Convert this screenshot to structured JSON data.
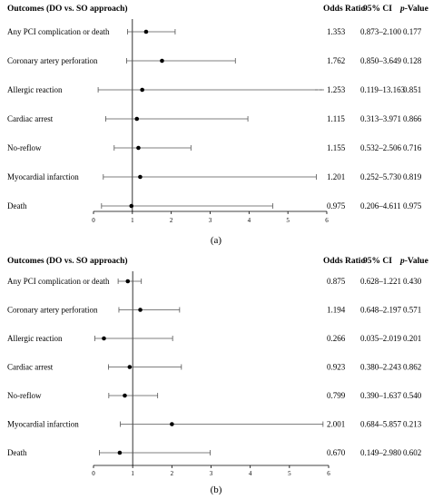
{
  "chart_data": [
    {
      "type": "forest",
      "panel_label": "(a)",
      "header": {
        "outcomes": "Outcomes (DO vs. SO approach)",
        "or": "Odds Ratio",
        "ci": "95% CI",
        "p_italic": "p",
        "p_rest": "-Value"
      },
      "xlim": [
        0,
        6
      ],
      "x_ticks": [
        "0",
        "1",
        "2",
        "3",
        "4",
        "5",
        "6"
      ],
      "rows": [
        {
          "label": "Any PCI complication or death",
          "or": 1.353,
          "lo": 0.873,
          "hi": 2.1,
          "or_text": "1.353",
          "ci_text": "0.873–2.100",
          "p_text": "0.177"
        },
        {
          "label": "Coronary artery perforation",
          "or": 1.762,
          "lo": 0.85,
          "hi": 3.649,
          "or_text": "1.762",
          "ci_text": "0.850–3.649",
          "p_text": "0.128"
        },
        {
          "label": "Allergic reaction",
          "or": 1.253,
          "lo": 0.119,
          "hi": 13.163,
          "or_text": "1.253",
          "ci_text": "0.119–13.163",
          "p_text": "0.851"
        },
        {
          "label": "Cardiac arrest",
          "or": 1.115,
          "lo": 0.313,
          "hi": 3.971,
          "or_text": "1.115",
          "ci_text": "0.313–3.971",
          "p_text": "0.866"
        },
        {
          "label": "No-reflow",
          "or": 1.155,
          "lo": 0.532,
          "hi": 2.506,
          "or_text": "1.155",
          "ci_text": "0.532–2.506",
          "p_text": "0.716"
        },
        {
          "label": "Myocardial infarction",
          "or": 1.201,
          "lo": 0.252,
          "hi": 5.73,
          "or_text": "1.201",
          "ci_text": "0.252–5.730",
          "p_text": "0.819"
        },
        {
          "label": "Death",
          "or": 0.975,
          "lo": 0.206,
          "hi": 4.611,
          "or_text": "0.975",
          "ci_text": "0.206–4.611",
          "p_text": "0.975"
        }
      ]
    },
    {
      "type": "forest",
      "panel_label": "(b)",
      "header": {
        "outcomes": "Outcomes (DO vs. SO approach)",
        "or": "Odds Ratio",
        "ci": "95% CI",
        "p_italic": "p",
        "p_rest": "-Value"
      },
      "xlim": [
        0,
        6
      ],
      "x_ticks": [
        "0",
        "1",
        "2",
        "3",
        "4",
        "5",
        "6"
      ],
      "rows": [
        {
          "label": "Any PCI complication or death",
          "or": 0.875,
          "lo": 0.628,
          "hi": 1.221,
          "or_text": "0.875",
          "ci_text": "0.628–1.221",
          "p_text": "0.430"
        },
        {
          "label": "Coronary artery perforation",
          "or": 1.194,
          "lo": 0.648,
          "hi": 2.197,
          "or_text": "1.194",
          "ci_text": "0.648–2.197",
          "p_text": "0.571"
        },
        {
          "label": "Allergic reaction",
          "or": 0.266,
          "lo": 0.035,
          "hi": 2.019,
          "or_text": "0.266",
          "ci_text": "0.035–2.019",
          "p_text": "0.201"
        },
        {
          "label": "Cardiac arrest",
          "or": 0.923,
          "lo": 0.38,
          "hi": 2.243,
          "or_text": "0.923",
          "ci_text": "0.380–2.243",
          "p_text": "0.862"
        },
        {
          "label": "No-reflow",
          "or": 0.799,
          "lo": 0.39,
          "hi": 1.637,
          "or_text": "0.799",
          "ci_text": "0.390–1.637",
          "p_text": "0.540"
        },
        {
          "label": "Myocardial infarction",
          "or": 2.001,
          "lo": 0.684,
          "hi": 5.857,
          "or_text": "2.001",
          "ci_text": "0.684–5.857",
          "p_text": "0.213"
        },
        {
          "label": "Death",
          "or": 0.67,
          "lo": 0.149,
          "hi": 2.98,
          "or_text": "0.670",
          "ci_text": "0.149–2.980",
          "p_text": "0.602"
        }
      ]
    }
  ]
}
